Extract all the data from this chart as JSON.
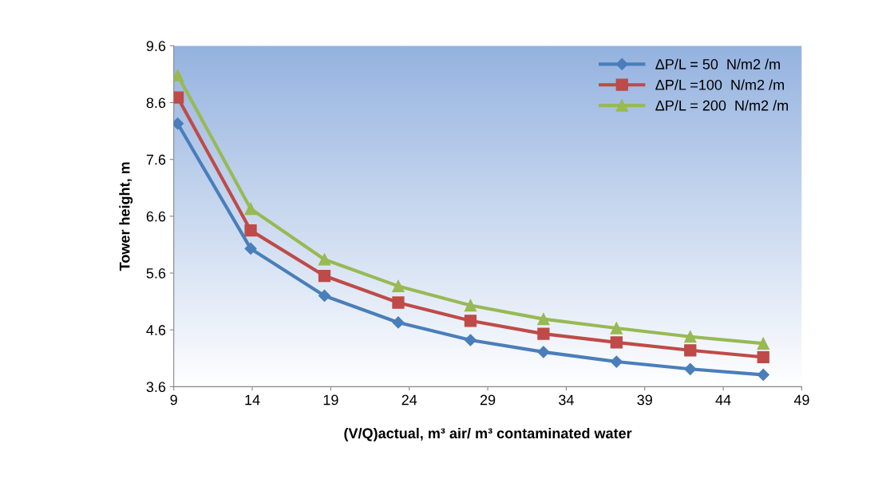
{
  "chart_data": {
    "type": "line",
    "xlabel": "(V/Q)actual, m³ air/ m³ contaminated water",
    "ylabel": "Tower height, m",
    "x": [
      9.25,
      13.9,
      18.6,
      23.3,
      27.9,
      32.55,
      37.2,
      41.9,
      46.55
    ],
    "series": [
      {
        "name": "ΔP/L = 50  N/m2 /m",
        "color": "#4a7ebb",
        "marker": "diamond",
        "values": [
          8.23,
          6.03,
          5.2,
          4.73,
          4.42,
          4.21,
          4.04,
          3.91,
          3.81
        ]
      },
      {
        "name": "ΔP/L =100  N/m2 /m",
        "color": "#be4b48",
        "marker": "square",
        "values": [
          8.69,
          6.35,
          5.55,
          5.08,
          4.76,
          4.53,
          4.38,
          4.24,
          4.12
        ]
      },
      {
        "name": "ΔP/L = 200  N/m2 /m",
        "color": "#98b954",
        "marker": "triangle",
        "values": [
          9.08,
          6.73,
          5.84,
          5.37,
          5.03,
          4.79,
          4.63,
          4.48,
          4.36
        ]
      }
    ],
    "xlim": [
      9,
      49
    ],
    "xticks": [
      9,
      14,
      19,
      24,
      29,
      34,
      39,
      44,
      49
    ],
    "ylim": [
      3.6,
      9.6
    ],
    "yticks": [
      3.6,
      4.6,
      5.6,
      6.6,
      7.6,
      8.6,
      9.6
    ],
    "grid": false,
    "legend": "top right",
    "line_style": "solid"
  }
}
